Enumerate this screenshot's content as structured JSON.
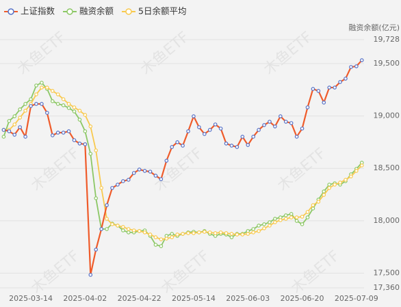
{
  "chart_data": {
    "type": "line",
    "y_axis_label": "融资余额(亿元)",
    "watermark": "木鱼ETF",
    "categories": [
      null,
      null,
      null,
      null,
      null,
      "2025-03-14",
      null,
      null,
      null,
      null,
      null,
      null,
      null,
      null,
      null,
      "2025-04-02",
      null,
      null,
      null,
      null,
      null,
      null,
      null,
      null,
      null,
      "2025-04-22",
      null,
      null,
      null,
      null,
      null,
      null,
      null,
      null,
      null,
      "2025-05-14",
      null,
      null,
      null,
      null,
      null,
      null,
      null,
      null,
      null,
      "2025-06-03",
      null,
      null,
      null,
      null,
      null,
      null,
      null,
      null,
      null,
      "2025-06-20",
      null,
      null,
      null,
      null,
      null,
      null,
      null,
      null,
      null,
      "2025-07-09",
      null
    ],
    "series": [
      {
        "name": "上证指数",
        "color": "#ef5b2a",
        "marker_color": "#5470c6",
        "values": [
          18867,
          18854,
          18821,
          18893,
          18802,
          19095,
          19115,
          19115,
          19030,
          18815,
          18841,
          18841,
          18854,
          18769,
          18737,
          18730,
          17484,
          17725,
          17921,
          18149,
          18313,
          18345,
          18378,
          18391,
          18456,
          18489,
          18476,
          18469,
          18430,
          18397,
          18573,
          18704,
          18750,
          18717,
          18854,
          18997,
          18893,
          18828,
          18867,
          18919,
          18880,
          18737,
          18717,
          18704,
          18802,
          18723,
          18802,
          18867,
          18913,
          18945,
          18900,
          18997,
          18945,
          18932,
          18802,
          18880,
          19082,
          19258,
          19239,
          19128,
          19271,
          19271,
          19324,
          19356,
          19467,
          19474,
          19532
        ]
      },
      {
        "name": "融资余额",
        "color": "#8cc765",
        "marker_color": "#8cc765",
        "values": [
          18802,
          18952,
          18997,
          19063,
          19115,
          19160,
          19291,
          19317,
          19258,
          19141,
          19115,
          19102,
          19076,
          19043,
          18965,
          18854,
          18639,
          18215,
          17921,
          17921,
          17973,
          17954,
          17908,
          17889,
          17889,
          17902,
          17908,
          17856,
          17771,
          17758,
          17856,
          17875,
          17856,
          17875,
          17889,
          17895,
          17889,
          17902,
          17875,
          17856,
          17875,
          17869,
          17843,
          17875,
          17875,
          17902,
          17921,
          17954,
          17967,
          17986,
          18019,
          18032,
          18052,
          18065,
          17999,
          17967,
          18032,
          18117,
          18202,
          18280,
          18345,
          18358,
          18345,
          18378,
          18443,
          18495,
          18554
        ]
      },
      {
        "name": "5日余额平均",
        "color": "#f8c94e",
        "marker_color": "#f8c94e",
        "values": [
          18867,
          18867,
          18919,
          18984,
          19050,
          19115,
          19206,
          19271,
          19271,
          19239,
          19206,
          19160,
          19115,
          19082,
          19050,
          19010,
          18900,
          18671,
          18313,
          18019,
          17967,
          17954,
          17941,
          17921,
          17908,
          17902,
          17889,
          17869,
          17843,
          17823,
          17830,
          17843,
          17869,
          17875,
          17882,
          17882,
          17889,
          17895,
          17889,
          17882,
          17889,
          17882,
          17875,
          17869,
          17869,
          17875,
          17889,
          17902,
          17928,
          17954,
          17986,
          18006,
          18019,
          18032,
          18032,
          18039,
          18084,
          18149,
          18182,
          18247,
          18313,
          18345,
          18365,
          18391,
          18423,
          18476,
          18528
        ]
      }
    ],
    "ylim": [
      17360,
      19728
    ],
    "yticks": [
      {
        "value": 17360,
        "label": "17,360"
      },
      {
        "value": 17500,
        "label": "17,500"
      },
      {
        "value": 18000,
        "label": "18,000"
      },
      {
        "value": 18500,
        "label": "18,500"
      },
      {
        "value": 19000,
        "label": "19,000"
      },
      {
        "value": 19500,
        "label": "19,500"
      },
      {
        "value": 19728,
        "label": "19,728"
      }
    ],
    "grid": true
  }
}
